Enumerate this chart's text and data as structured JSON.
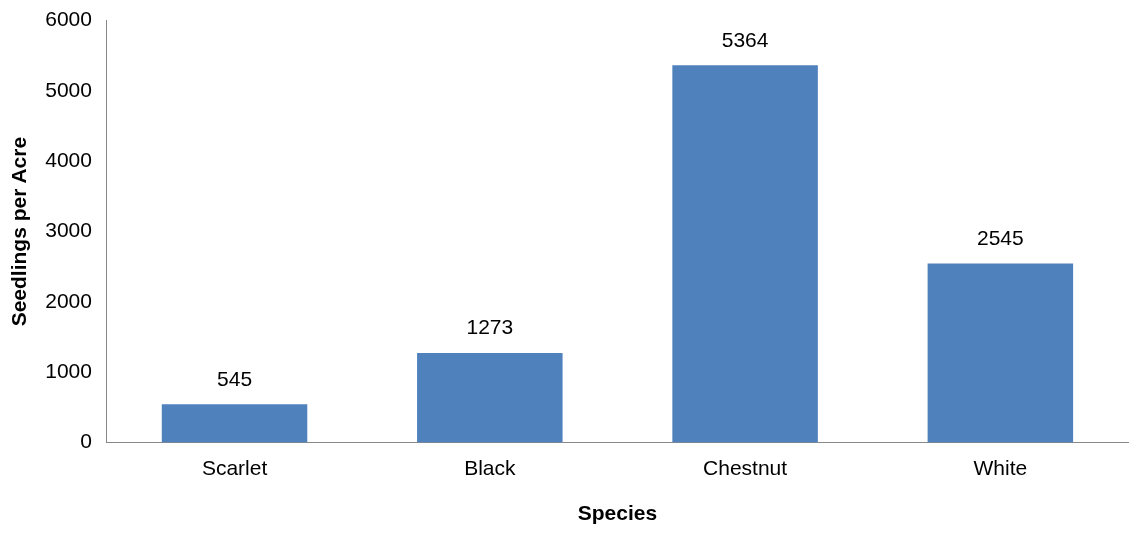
{
  "chart_data": {
    "type": "bar",
    "xlabel": "Species",
    "ylabel": "Seedlings per Acre",
    "categories": [
      "Scarlet",
      "Black",
      "Chestnut",
      "White"
    ],
    "values": [
      545,
      1273,
      5364,
      2545
    ],
    "color": "#4f81bd",
    "ylim": [
      0,
      6000
    ],
    "yticks": [
      0,
      1000,
      2000,
      3000,
      4000,
      5000,
      6000
    ],
    "grid": false,
    "legend": false,
    "data_labels": true
  }
}
